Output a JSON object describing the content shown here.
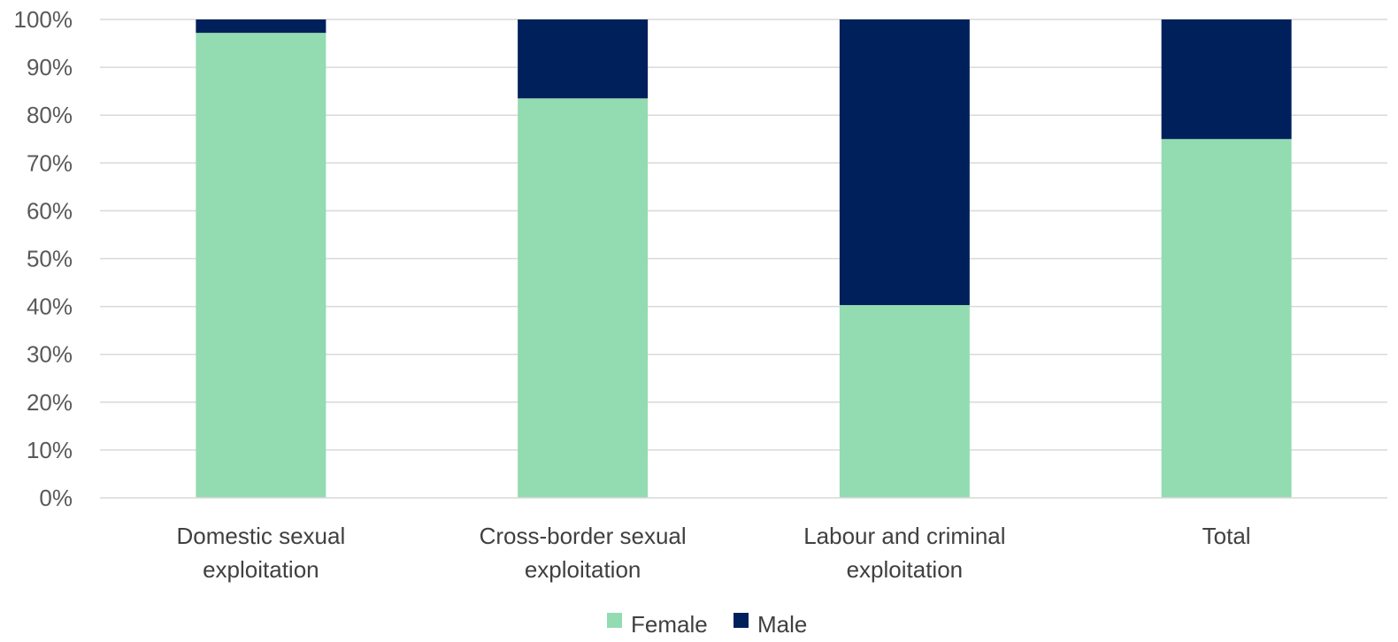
{
  "chart_data": {
    "type": "bar",
    "stacked": true,
    "percent": true,
    "title": "",
    "xlabel": "",
    "ylabel": "",
    "ylim": [
      0,
      100
    ],
    "y_ticks": [
      "0%",
      "10%",
      "20%",
      "30%",
      "40%",
      "50%",
      "60%",
      "70%",
      "80%",
      "90%",
      "100%"
    ],
    "grid": true,
    "legend_position": "bottom",
    "categories": [
      [
        "Domestic sexual",
        "exploitation"
      ],
      [
        "Cross-border sexual",
        "exploitation"
      ],
      [
        "Labour and criminal",
        "exploitation"
      ],
      [
        "Total"
      ]
    ],
    "series": [
      {
        "name": "Female",
        "color": "#93dbb1",
        "values": [
          97.2,
          83.5,
          40.3,
          75.0
        ]
      },
      {
        "name": "Male",
        "color": "#00205b",
        "values": [
          2.8,
          16.5,
          59.7,
          25.0
        ]
      }
    ]
  }
}
